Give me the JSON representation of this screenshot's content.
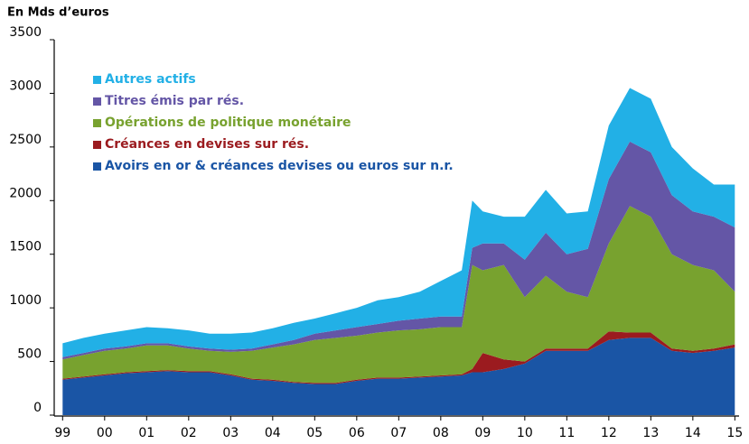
{
  "chart_data": {
    "type": "stacked_area",
    "y_label": "En Mds d’euros",
    "x": [
      1999.0,
      1999.5,
      2000.0,
      2000.5,
      2001.0,
      2001.5,
      2002.0,
      2002.5,
      2003.0,
      2003.5,
      2004.0,
      2004.5,
      2005.0,
      2005.5,
      2006.0,
      2006.5,
      2007.0,
      2007.5,
      2008.0,
      2008.5,
      2008.75,
      2009.0,
      2009.5,
      2010.0,
      2010.5,
      2011.0,
      2011.5,
      2012.0,
      2012.5,
      2013.0,
      2013.5,
      2014.0,
      2014.5,
      2015.0
    ],
    "series": [
      {
        "name": "Avoirs en or & créances devises ou euros sur n.r.",
        "color": "#1a55a5",
        "values": [
          330,
          350,
          370,
          390,
          400,
          410,
          400,
          400,
          370,
          330,
          320,
          300,
          290,
          290,
          320,
          340,
          340,
          350,
          360,
          370,
          400,
          400,
          430,
          480,
          600,
          600,
          600,
          700,
          720,
          720,
          600,
          580,
          600,
          630
        ]
      },
      {
        "name": "Créances en devises sur rés.",
        "color": "#9b1b1f",
        "values": [
          10,
          10,
          10,
          10,
          10,
          10,
          10,
          10,
          10,
          10,
          10,
          10,
          10,
          10,
          10,
          10,
          10,
          10,
          10,
          10,
          30,
          180,
          90,
          20,
          20,
          20,
          20,
          80,
          50,
          50,
          20,
          20,
          20,
          30
        ]
      },
      {
        "name": "Opérations de politique monétaire",
        "color": "#78a22f",
        "values": [
          180,
          200,
          220,
          220,
          240,
          230,
          210,
          190,
          210,
          260,
          300,
          350,
          400,
          420,
          410,
          420,
          440,
          440,
          450,
          440,
          970,
          770,
          880,
          600,
          680,
          530,
          480,
          820,
          1180,
          1080,
          880,
          800,
          730,
          490
        ]
      },
      {
        "name": "Titres émis par rés.",
        "color": "#6456a6",
        "values": [
          20,
          20,
          20,
          20,
          20,
          20,
          20,
          20,
          20,
          20,
          30,
          40,
          60,
          70,
          80,
          80,
          90,
          100,
          100,
          100,
          160,
          250,
          200,
          350,
          400,
          350,
          450,
          600,
          600,
          600,
          550,
          500,
          500,
          600
        ]
      },
      {
        "name": "Autres actifs",
        "color": "#22b0e6",
        "values": [
          130,
          140,
          140,
          150,
          150,
          140,
          150,
          140,
          150,
          150,
          150,
          160,
          140,
          160,
          180,
          220,
          220,
          250,
          330,
          430,
          440,
          300,
          250,
          400,
          400,
          380,
          350,
          500,
          500,
          500,
          450,
          400,
          300,
          400
        ]
      }
    ],
    "xlim": [
      1998.8,
      2015.1
    ],
    "xticks": [
      {
        "value": 1999,
        "label": "99"
      },
      {
        "value": 2000,
        "label": "00"
      },
      {
        "value": 2001,
        "label": "01"
      },
      {
        "value": 2002,
        "label": "02"
      },
      {
        "value": 2003,
        "label": "03"
      },
      {
        "value": 2004,
        "label": "04"
      },
      {
        "value": 2005,
        "label": "05"
      },
      {
        "value": 2006,
        "label": "06"
      },
      {
        "value": 2007,
        "label": "07"
      },
      {
        "value": 2008,
        "label": "08"
      },
      {
        "value": 2009,
        "label": "09"
      },
      {
        "value": 2010,
        "label": "10"
      },
      {
        "value": 2011,
        "label": "11"
      },
      {
        "value": 2012,
        "label": "12"
      },
      {
        "value": 2013,
        "label": "13"
      },
      {
        "value": 2014,
        "label": "14"
      },
      {
        "value": 2015,
        "label": "15"
      }
    ],
    "ylim": [
      0,
      3500
    ],
    "yticks": [
      0,
      500,
      1000,
      1500,
      2000,
      2500,
      3000,
      3500
    ],
    "legend": "upper left"
  }
}
